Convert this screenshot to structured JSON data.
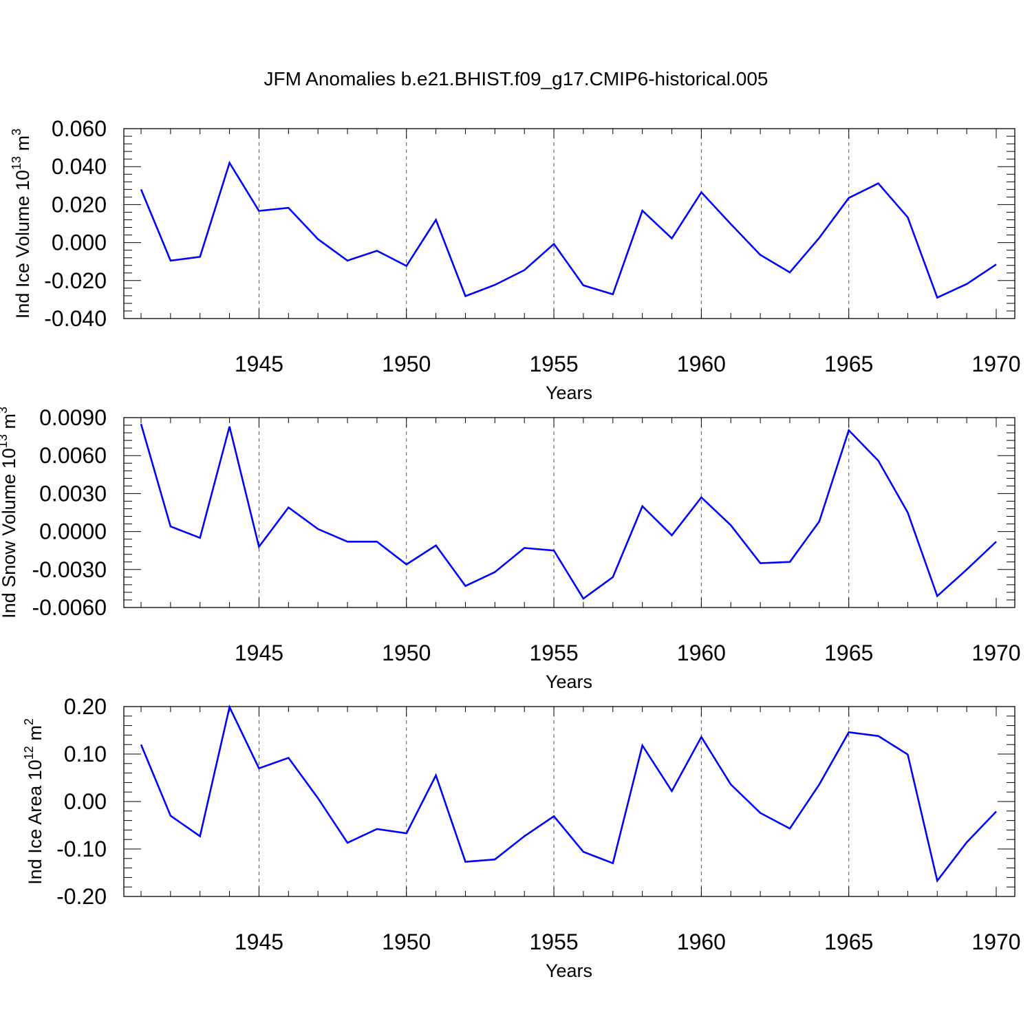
{
  "figure_title": "JFM Anomalies b.e21.BHIST.f09_g17.CMIP6-historical.005",
  "line_color": "#0000ff",
  "chart_data": [
    {
      "type": "line",
      "ylabel": {
        "prefix": "Ind Ice Volume 10",
        "exponent": "13",
        "unit": " m",
        "unit_exponent": "3"
      },
      "xlabel": "Years",
      "xlim": [
        1941,
        1970
      ],
      "ylim": [
        -0.04,
        0.06
      ],
      "yticks": [
        -0.04,
        -0.02,
        0.0,
        0.02,
        0.04,
        0.06
      ],
      "ytick_labels": [
        "-0.040",
        "-0.020",
        "0.000",
        "0.020",
        "0.040",
        "0.060"
      ],
      "xticks": [
        1945,
        1950,
        1955,
        1960,
        1965,
        1970
      ],
      "xtick_labels": [
        "1945",
        "1950",
        "1955",
        "1960",
        "1965",
        "1970"
      ],
      "series": [
        {
          "name": "Ind Ice Volume",
          "x": [
            1941,
            1942,
            1943,
            1944,
            1945,
            1946,
            1947,
            1948,
            1949,
            1950,
            1951,
            1952,
            1953,
            1954,
            1955,
            1956,
            1957,
            1958,
            1959,
            1960,
            1961,
            1962,
            1963,
            1964,
            1965,
            1966,
            1967,
            1968,
            1969,
            1970
          ],
          "y": [
            0.028,
            -0.0095,
            -0.0075,
            0.042,
            0.0167,
            0.0183,
            0.0018,
            -0.0095,
            -0.0043,
            -0.0123,
            0.012,
            -0.0282,
            -0.0223,
            -0.0145,
            -0.0007,
            -0.0225,
            -0.0272,
            0.0168,
            0.0022,
            0.0265,
            0.0098,
            -0.0065,
            -0.0157,
            0.0025,
            0.0235,
            0.0312,
            0.0133,
            -0.029,
            -0.0218,
            -0.0115
          ]
        }
      ]
    },
    {
      "type": "line",
      "ylabel": {
        "prefix": "Ind Snow Volume 10",
        "exponent": "13",
        "unit": " m",
        "unit_exponent": "3"
      },
      "xlabel": "Years",
      "xlim": [
        1941,
        1970
      ],
      "ylim": [
        -0.006,
        0.009
      ],
      "yticks": [
        -0.006,
        -0.003,
        0.0,
        0.003,
        0.006,
        0.009
      ],
      "ytick_labels": [
        "-0.0060",
        "-0.0030",
        "0.0000",
        "0.0030",
        "0.0060",
        "0.0090"
      ],
      "xticks": [
        1945,
        1950,
        1955,
        1960,
        1965,
        1970
      ],
      "xtick_labels": [
        "1945",
        "1950",
        "1955",
        "1960",
        "1965",
        "1970"
      ],
      "series": [
        {
          "name": "Ind Snow Volume",
          "x": [
            1941,
            1942,
            1943,
            1944,
            1945,
            1946,
            1947,
            1948,
            1949,
            1950,
            1951,
            1952,
            1953,
            1954,
            1955,
            1956,
            1957,
            1958,
            1959,
            1960,
            1961,
            1962,
            1963,
            1964,
            1965,
            1966,
            1967,
            1968,
            1969,
            1970
          ],
          "y": [
            0.0085,
            0.0004,
            -0.0005,
            0.0083,
            -0.0012,
            0.0019,
            0.0002,
            -0.0008,
            -0.0008,
            -0.0026,
            -0.0011,
            -0.0043,
            -0.0032,
            -0.0013,
            -0.0015,
            -0.0053,
            -0.0036,
            0.002,
            -0.0003,
            0.0027,
            0.0005,
            -0.0025,
            -0.0024,
            0.0008,
            0.008,
            0.0056,
            0.0015,
            -0.0051,
            -0.003,
            -0.0008
          ]
        }
      ]
    },
    {
      "type": "line",
      "ylabel": {
        "prefix": "Ind Ice Area 10",
        "exponent": "12",
        "unit": " m",
        "unit_exponent": "2"
      },
      "xlabel": "Years",
      "xlim": [
        1941,
        1970
      ],
      "ylim": [
        -0.2,
        0.2
      ],
      "yticks": [
        -0.2,
        -0.1,
        0.0,
        0.1,
        0.2
      ],
      "ytick_labels": [
        "-0.20",
        "-0.10",
        "0.00",
        "0.10",
        "0.20"
      ],
      "xticks": [
        1945,
        1950,
        1955,
        1960,
        1965,
        1970
      ],
      "xtick_labels": [
        "1945",
        "1950",
        "1955",
        "1960",
        "1965",
        "1970"
      ],
      "series": [
        {
          "name": "Ind Ice Area",
          "x": [
            1941,
            1942,
            1943,
            1944,
            1945,
            1946,
            1947,
            1948,
            1949,
            1950,
            1951,
            1952,
            1953,
            1954,
            1955,
            1956,
            1957,
            1958,
            1959,
            1960,
            1961,
            1962,
            1963,
            1964,
            1965,
            1966,
            1967,
            1968,
            1969,
            1970
          ],
          "y": [
            0.12,
            -0.03,
            -0.073,
            0.199,
            0.07,
            0.092,
            0.007,
            -0.087,
            -0.058,
            -0.067,
            0.055,
            -0.127,
            -0.122,
            -0.073,
            -0.031,
            -0.106,
            -0.13,
            0.118,
            0.022,
            0.136,
            0.036,
            -0.024,
            -0.057,
            0.036,
            0.146,
            0.138,
            0.099,
            -0.167,
            -0.086,
            -0.021
          ]
        }
      ]
    }
  ]
}
